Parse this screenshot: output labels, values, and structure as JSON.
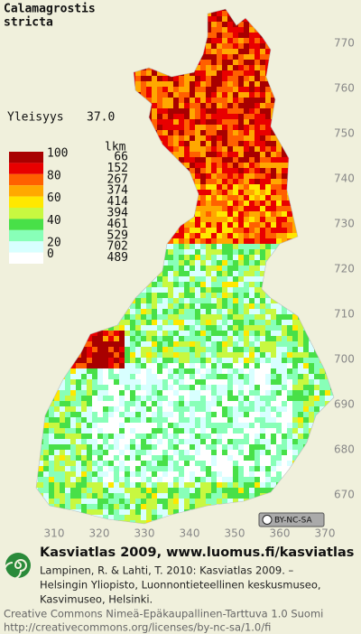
{
  "title": [
    "Calamagrostis",
    "stricta"
  ],
  "frequency": {
    "label": "Yleisyys",
    "value": "37.0"
  },
  "legend": {
    "scale_labels": [
      100,
      80,
      60,
      40,
      20,
      0
    ],
    "count_header": "lkm",
    "classes": [
      {
        "color": "#a80000",
        "count": 66
      },
      {
        "color": "#e80000",
        "count": 152
      },
      {
        "color": "#ff6000",
        "count": 267
      },
      {
        "color": "#ffa800",
        "count": 374
      },
      {
        "color": "#ffe800",
        "count": 414
      },
      {
        "color": "#c8f840",
        "count": 394
      },
      {
        "color": "#48e048",
        "count": 461
      },
      {
        "color": "#88ffb8",
        "count": 529
      },
      {
        "color": "#d8ffff",
        "count": 702
      },
      {
        "color": "#ffffff",
        "count": 489
      }
    ]
  },
  "northing_labels": [
    770,
    760,
    750,
    740,
    730,
    720,
    710,
    700,
    690,
    680,
    670
  ],
  "easting_labels": [
    310,
    320,
    330,
    340,
    350,
    360,
    370
  ],
  "license_badge": "BY-NC-SA",
  "footer": {
    "heading": "Kasviatlas 2009, www.luomus.fi/kasviatlas",
    "citation": [
      "Lampinen, R. & Lahti, T. 2010: Kasviatlas 2009. –",
      "Helsingin Yliopisto, Luonnontieteellinen keskusmuseo,",
      "Kasvimuseo, Helsinki."
    ],
    "license": [
      "Creative Commons Nimeä-Epäkaupallinen-Tarttuva 1.0 Suomi",
      "http://creativecommons.org/licenses/by-nc-sa/1.0/fi"
    ]
  }
}
